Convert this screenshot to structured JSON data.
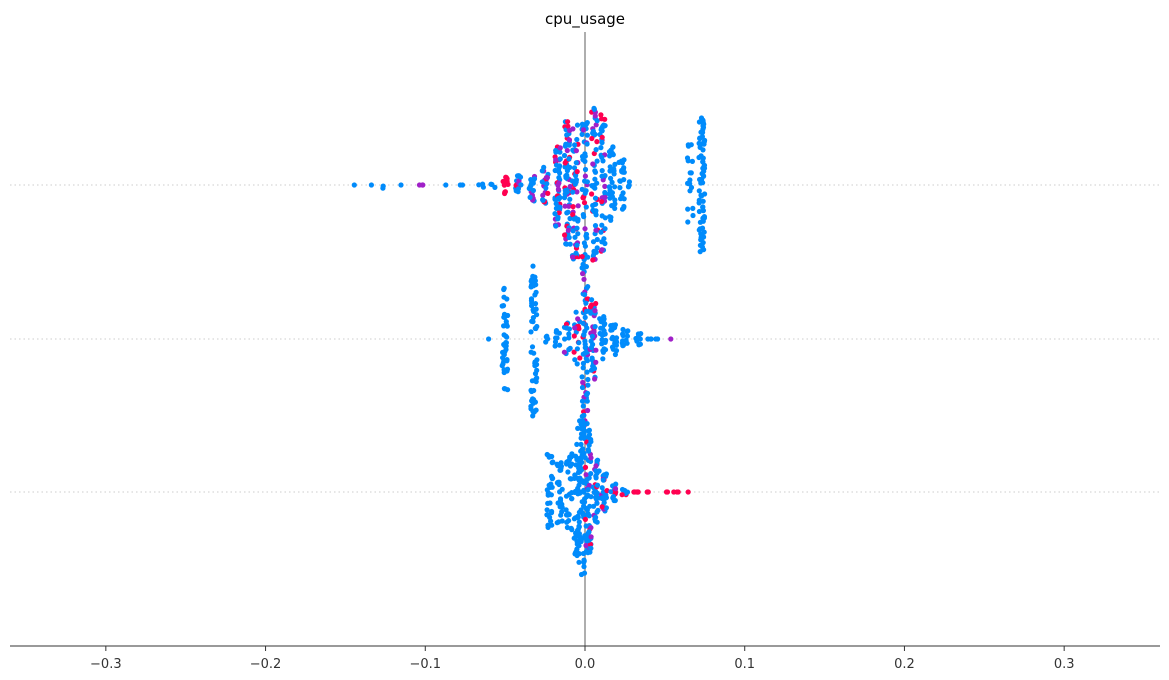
{
  "chart_data": {
    "type": "scatter",
    "subtype": "beeswarm",
    "title": "cpu_usage",
    "xlabel": "",
    "ylabel": "",
    "xlim": [
      -0.36,
      0.36
    ],
    "x_ticks": [
      -0.3,
      -0.2,
      -0.1,
      0.0,
      0.1,
      0.2,
      0.3
    ],
    "x_tick_labels": [
      "−0.3",
      "−0.2",
      "−0.1",
      "0.0",
      "0.1",
      "0.2",
      "0.3"
    ],
    "zero_line": true,
    "y_gridlines": "dotted",
    "colors": {
      "low": "#008bfb",
      "high": "#ff0051",
      "mid": "#a020c8",
      "zero_line": "#999999",
      "grid": "#cccccc",
      "axis": "#333333"
    },
    "rows": [
      {
        "groups": [
          {
            "x": -0.145,
            "spread": 0,
            "count": 1
          },
          {
            "x": -0.133,
            "spread": 0,
            "count": 1
          },
          {
            "x": -0.127,
            "spread": 1,
            "count": 2
          },
          {
            "x": -0.114,
            "spread": 0,
            "count": 1
          },
          {
            "x": -0.103,
            "spread": 0,
            "count": 3,
            "color": "mid"
          },
          {
            "x": -0.086,
            "spread": 0,
            "count": 1
          },
          {
            "x": -0.077,
            "spread": 0,
            "count": 2
          },
          {
            "x": -0.065,
            "spread": 1,
            "count": 3
          },
          {
            "x": -0.058,
            "spread": 1,
            "count": 3
          },
          {
            "x": -0.05,
            "spread": 3,
            "count": 14,
            "color": "high"
          },
          {
            "x": -0.042,
            "spread": 3,
            "count": 16,
            "color": "mix"
          },
          {
            "x": -0.033,
            "spread": 5,
            "count": 18,
            "color": "mix"
          },
          {
            "x": -0.025,
            "spread": 6,
            "count": 24,
            "color": "mix"
          },
          {
            "x": -0.017,
            "spread": 13,
            "count": 50,
            "color": "mix"
          },
          {
            "x": -0.011,
            "spread": 20,
            "count": 60,
            "color": "mix"
          },
          {
            "x": -0.006,
            "spread": 24,
            "count": 50,
            "color": "mix"
          },
          {
            "x": 0.0,
            "spread": 20,
            "count": 40,
            "color": "mix"
          },
          {
            "x": 0.006,
            "spread": 25,
            "count": 55,
            "color": "mix"
          },
          {
            "x": 0.011,
            "spread": 22,
            "count": 45,
            "color": "mix"
          },
          {
            "x": 0.017,
            "spread": 12,
            "count": 30
          },
          {
            "x": 0.023,
            "spread": 8,
            "count": 22
          },
          {
            "x": 0.029,
            "spread": 1,
            "count": 4
          },
          {
            "x": 0.066,
            "spread": 13,
            "count": 18
          },
          {
            "x": 0.073,
            "spread": 21,
            "count": 70
          }
        ]
      },
      {
        "groups": [
          {
            "x": -0.062,
            "spread": 0,
            "count": 1
          },
          {
            "x": -0.05,
            "spread": 16,
            "count": 40
          },
          {
            "x": -0.032,
            "spread": 25,
            "count": 60
          },
          {
            "x": -0.025,
            "spread": 1,
            "count": 4
          },
          {
            "x": -0.017,
            "spread": 3,
            "count": 8
          },
          {
            "x": -0.011,
            "spread": 5,
            "count": 12,
            "color": "mix"
          },
          {
            "x": -0.005,
            "spread": 9,
            "count": 18,
            "color": "mix"
          },
          {
            "x": 0.0,
            "spread": 27,
            "count": 70,
            "color": "mix"
          },
          {
            "x": 0.005,
            "spread": 13,
            "count": 40,
            "color": "mix"
          },
          {
            "x": 0.011,
            "spread": 7,
            "count": 25
          },
          {
            "x": 0.018,
            "spread": 5,
            "count": 18
          },
          {
            "x": 0.025,
            "spread": 3,
            "count": 12
          },
          {
            "x": 0.033,
            "spread": 2,
            "count": 8
          },
          {
            "x": 0.04,
            "spread": 0,
            "count": 3
          },
          {
            "x": 0.046,
            "spread": 0,
            "count": 2
          },
          {
            "x": 0.055,
            "spread": 0,
            "count": 1,
            "color": "mid"
          }
        ]
      },
      {
        "groups": [
          {
            "x": -0.022,
            "spread": 12,
            "count": 30
          },
          {
            "x": -0.016,
            "spread": 10,
            "count": 24
          },
          {
            "x": -0.01,
            "spread": 12,
            "count": 28
          },
          {
            "x": -0.005,
            "spread": 20,
            "count": 50
          },
          {
            "x": -0.002,
            "spread": 27,
            "count": 60
          },
          {
            "x": 0.002,
            "spread": 20,
            "count": 60,
            "color": "mix"
          },
          {
            "x": 0.007,
            "spread": 10,
            "count": 35,
            "color": "mix"
          },
          {
            "x": 0.012,
            "spread": 6,
            "count": 25,
            "color": "mix"
          },
          {
            "x": 0.018,
            "spread": 3,
            "count": 15,
            "color": "mix"
          },
          {
            "x": 0.025,
            "spread": 1,
            "count": 10,
            "color": "mix"
          },
          {
            "x": 0.032,
            "spread": 0,
            "count": 6,
            "color": "high"
          },
          {
            "x": 0.038,
            "spread": 0,
            "count": 3,
            "color": "high"
          },
          {
            "x": 0.05,
            "spread": 0,
            "count": 2,
            "color": "high"
          },
          {
            "x": 0.057,
            "spread": 0,
            "count": 3,
            "color": "high"
          },
          {
            "x": 0.065,
            "spread": 0,
            "count": 1,
            "color": "high"
          }
        ]
      }
    ]
  }
}
